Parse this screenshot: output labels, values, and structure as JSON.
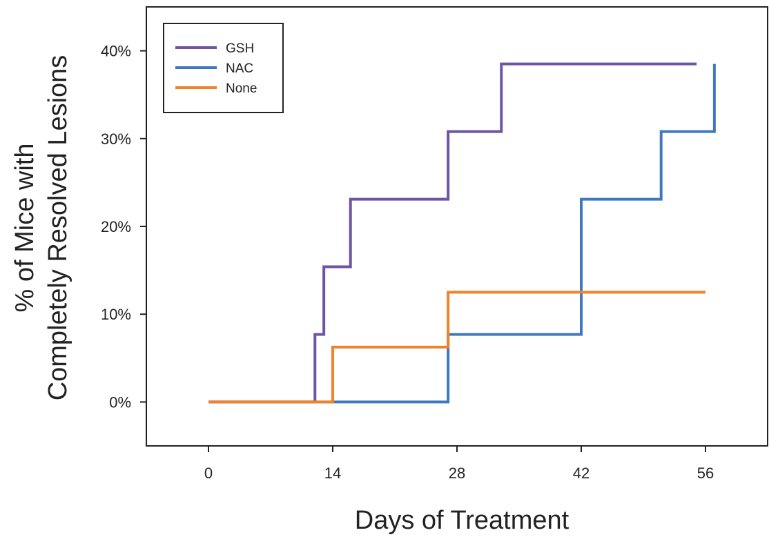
{
  "chart_data": {
    "type": "line",
    "step": true,
    "xlabel": "Days of Treatment",
    "ylabel_lines": [
      "% of Mice with",
      "Completely Resolved Lesions"
    ],
    "xlim": [
      -7,
      63
    ],
    "ylim": [
      -5,
      45
    ],
    "x_ticks": [
      0,
      14,
      28,
      42,
      56
    ],
    "x_tick_labels": [
      "0",
      "14",
      "28",
      "42",
      "56"
    ],
    "y_ticks": [
      0,
      10,
      20,
      30,
      40
    ],
    "y_tick_labels": [
      "0%",
      "10%",
      "20%",
      "30%",
      "40%"
    ],
    "grid": false,
    "legend_position": "top-left",
    "series": [
      {
        "name": "GSH",
        "color": "#6E54A3",
        "x": [
          0,
          12,
          13,
          16,
          27,
          33,
          55
        ],
        "y": [
          0,
          7.7,
          15.4,
          23.1,
          30.8,
          38.5,
          38.5
        ]
      },
      {
        "name": "NAC",
        "color": "#3F78BE",
        "x": [
          0,
          27,
          42,
          51,
          57,
          57
        ],
        "y": [
          0,
          7.7,
          23.1,
          30.8,
          38.5,
          38.5
        ]
      },
      {
        "name": "None",
        "color": "#F0822A",
        "x": [
          0,
          14,
          27,
          56
        ],
        "y": [
          0,
          6.25,
          12.5,
          12.5
        ]
      }
    ]
  }
}
